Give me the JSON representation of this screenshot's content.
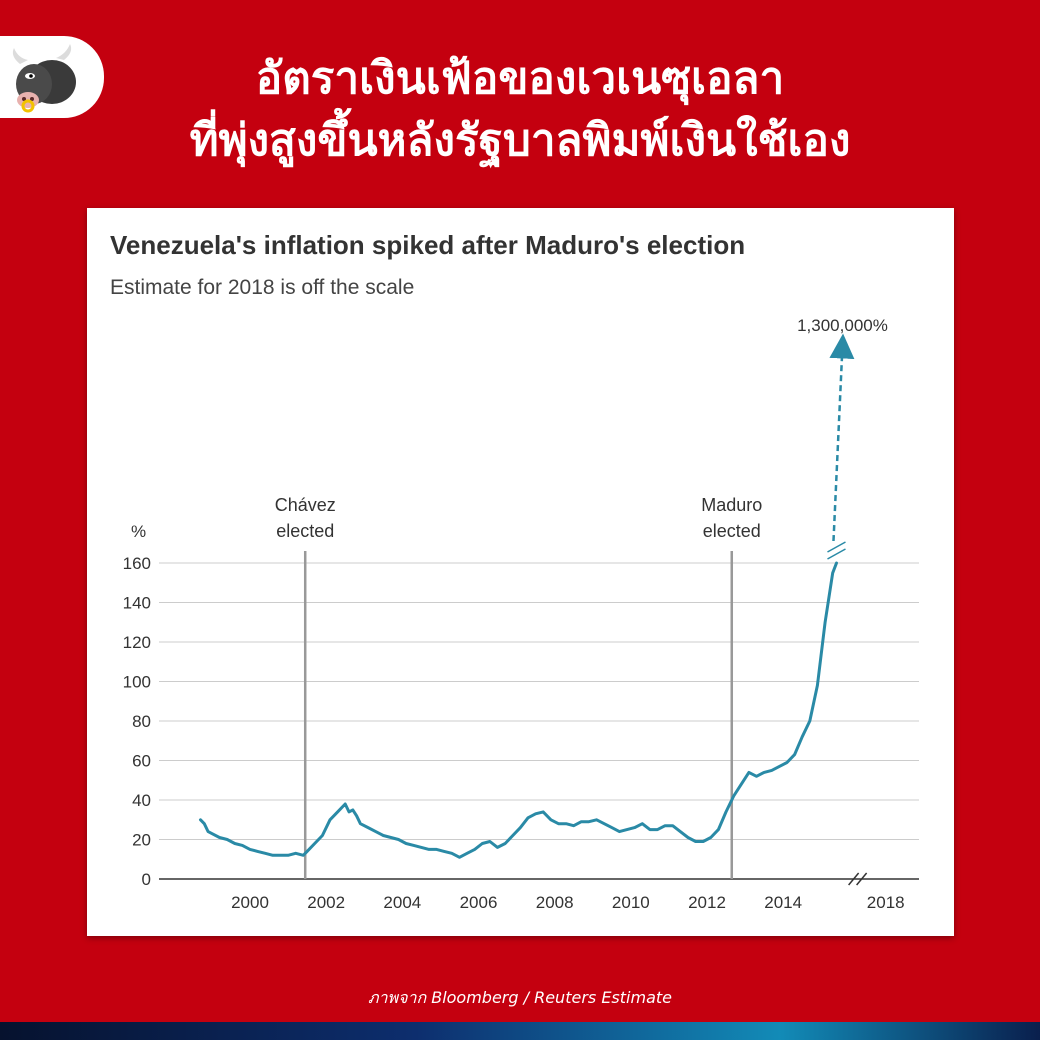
{
  "header": {
    "headline_line1": "อัตราเงินเฟ้อของเวเนซุเอลา",
    "headline_line2": "ที่พุ่งสูงขึ้นหลังรัฐบาลพิมพ์เงินใช้เอง",
    "logo_icon": "bull-mascot-icon"
  },
  "footer": {
    "source": "ภาพจาก Bloomberg / Reuters Estimate"
  },
  "colors": {
    "background": "#c4000f",
    "line": "#2a8aa6",
    "grid": "#cccccc",
    "marker_line": "#999999"
  },
  "chart_data": {
    "type": "line",
    "title": "Venezuela's inflation spiked after Maduro's election",
    "subtitle": "Estimate for 2018 is off the scale",
    "ylabel": "%",
    "ylim": [
      0,
      160
    ],
    "yticks": [
      0,
      20,
      40,
      60,
      80,
      100,
      120,
      140,
      160
    ],
    "xticks": [
      "2000",
      "2002",
      "2004",
      "2006",
      "2008",
      "2010",
      "2012",
      "2014",
      "2018"
    ],
    "axis_break": "between 2015 and 2018",
    "grid": true,
    "annotations": [
      {
        "label_line1": "Chávez",
        "label_line2": "elected",
        "x": 2001.45
      },
      {
        "label_line1": "Maduro",
        "label_line2": "elected",
        "x": 2012.65
      }
    ],
    "estimate": {
      "x": "2018",
      "label": "1,300,000%"
    },
    "series": [
      {
        "x": [
          1998.7,
          1998.8,
          1998.9,
          1999.0,
          1999.2,
          1999.4,
          1999.6,
          1999.8,
          2000.0,
          2000.2,
          2000.4,
          2000.6,
          2000.8,
          2001.0,
          2001.2,
          2001.4,
          2001.5,
          2001.7,
          2001.9,
          2002.1,
          2002.3,
          2002.5,
          2002.6,
          2002.7,
          2002.8,
          2002.9,
          2003.1,
          2003.3,
          2003.5,
          2003.7,
          2003.9,
          2004.1,
          2004.3,
          2004.5,
          2004.7,
          2004.9,
          2005.1,
          2005.3,
          2005.5,
          2005.7,
          2005.9,
          2006.1,
          2006.3,
          2006.5,
          2006.7,
          2006.9,
          2007.1,
          2007.3,
          2007.5,
          2007.7,
          2007.9,
          2008.1,
          2008.3,
          2008.5,
          2008.7,
          2008.9,
          2009.1,
          2009.3,
          2009.5,
          2009.7,
          2009.9,
          2010.1,
          2010.3,
          2010.5,
          2010.7,
          2010.9,
          2011.1,
          2011.3,
          2011.5,
          2011.7,
          2011.9,
          2012.1,
          2012.3,
          2012.5,
          2012.7,
          2012.9,
          2013.1,
          2013.3,
          2013.5,
          2013.7,
          2013.9,
          2014.1,
          2014.3,
          2014.5,
          2014.7,
          2014.9,
          2015.1,
          2015.3,
          2015.4
        ],
        "values": [
          30,
          28,
          24,
          23,
          21,
          20,
          18,
          17,
          15,
          14,
          13,
          12,
          12,
          12,
          13,
          12,
          14,
          18,
          22,
          30,
          34,
          38,
          34,
          35,
          32,
          28,
          26,
          24,
          22,
          21,
          20,
          18,
          17,
          16,
          15,
          15,
          14,
          13,
          11,
          13,
          15,
          18,
          19,
          16,
          18,
          22,
          26,
          31,
          33,
          34,
          30,
          28,
          28,
          27,
          29,
          29,
          30,
          28,
          26,
          24,
          25,
          26,
          28,
          25,
          25,
          27,
          27,
          24,
          21,
          19,
          19,
          21,
          25,
          34,
          42,
          48,
          54,
          52,
          54,
          55,
          57,
          59,
          63,
          72,
          80,
          98,
          130,
          155,
          160
        ]
      }
    ]
  }
}
